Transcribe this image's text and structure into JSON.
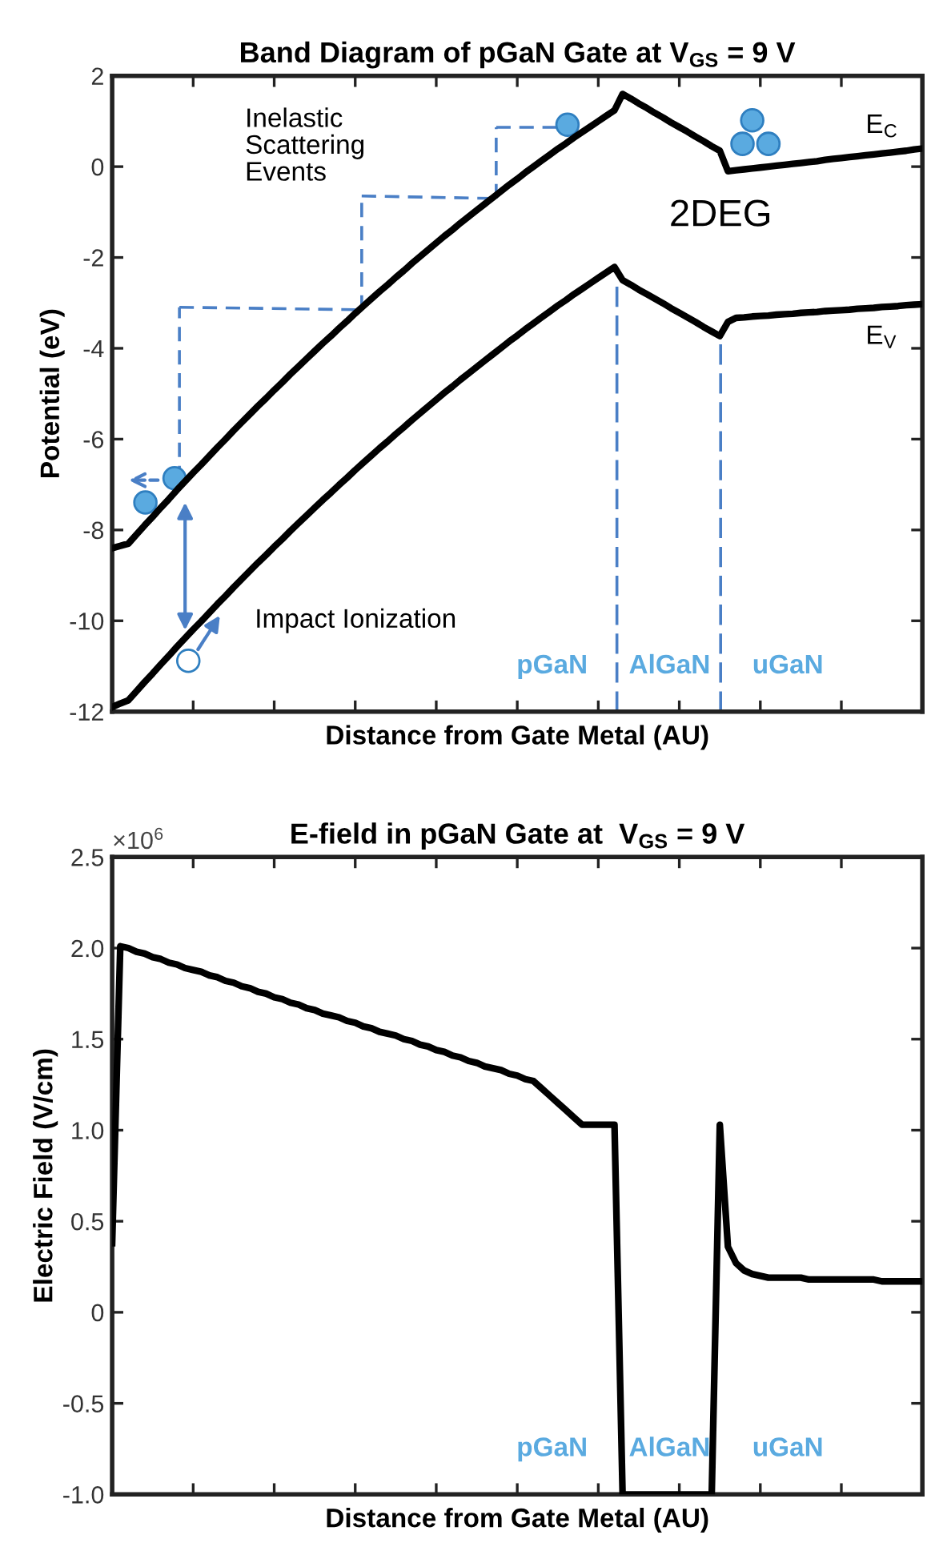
{
  "chart_data": [
    {
      "type": "line",
      "title": "Band Diagram of pGaN Gate at V$_{GS}$ = 9 V",
      "xlabel": "Distance from Gate Metal (AU)",
      "ylabel": "Potential (eV)",
      "categories": [
        null,
        null,
        null,
        null,
        null,
        null,
        null,
        null,
        null,
        null,
        null,
        null,
        null,
        null,
        null,
        null,
        null,
        null,
        null,
        null,
        null,
        null,
        null,
        null,
        null,
        null,
        null,
        null,
        null,
        null,
        null,
        null,
        null,
        null,
        null,
        null,
        null,
        null,
        null,
        null,
        null,
        null,
        null,
        null,
        null,
        null,
        null,
        null,
        null,
        null,
        null,
        null,
        null,
        null,
        null,
        null,
        null,
        null,
        null,
        null,
        null,
        null,
        null,
        null,
        null,
        null,
        null,
        null,
        null,
        null,
        null,
        null,
        null,
        null,
        null,
        null,
        null,
        null,
        null,
        null,
        null,
        null,
        null,
        null,
        null,
        null,
        null,
        null,
        null,
        null,
        null,
        null,
        null,
        null,
        null,
        null,
        null,
        null,
        null,
        null,
        null
      ],
      "ylim": [
        -12,
        2
      ],
      "yticks": [
        -12,
        -10,
        -8,
        -6,
        -4,
        -2,
        0,
        2
      ],
      "tick_labels": "y",
      "series": [
        {
          "color": "#000000",
          "values": [
            -8.4,
            -8.35,
            -8.3,
            -8.1,
            -7.9,
            -7.71,
            -7.51,
            -7.32,
            -7.12,
            -6.93,
            -6.74,
            -6.56,
            -6.37,
            -6.18,
            -6.0,
            -5.81,
            -5.63,
            -5.45,
            -5.27,
            -5.1,
            -4.92,
            -4.75,
            -4.57,
            -4.4,
            -4.23,
            -4.06,
            -3.89,
            -3.73,
            -3.56,
            -3.4,
            -3.23,
            -3.07,
            -2.91,
            -2.75,
            -2.6,
            -2.44,
            -2.29,
            -2.13,
            -1.98,
            -1.83,
            -1.68,
            -1.53,
            -1.39,
            -1.24,
            -1.1,
            -0.96,
            -0.82,
            -0.68,
            -0.54,
            -0.4,
            -0.27,
            -0.13,
            0.0,
            0.13,
            0.26,
            0.39,
            0.51,
            0.64,
            0.76,
            0.88,
            1.0,
            1.12,
            1.24,
            1.6,
            1.5,
            1.39,
            1.29,
            1.18,
            1.08,
            0.97,
            0.87,
            0.77,
            0.66,
            0.56,
            0.45,
            0.35,
            -0.1,
            -0.08,
            -0.06,
            -0.04,
            -0.02,
            0.0,
            0.02,
            0.04,
            0.06,
            0.08,
            0.1,
            0.12,
            0.15,
            0.17,
            0.19,
            0.21,
            0.23,
            0.25,
            0.27,
            0.29,
            0.31,
            0.33,
            0.35,
            0.38,
            0.4
          ]
        },
        {
          "color": "#000000",
          "values": [
            -11.9,
            -11.82,
            -11.75,
            -11.55,
            -11.35,
            -11.16,
            -10.96,
            -10.77,
            -10.57,
            -10.38,
            -10.19,
            -10.01,
            -9.82,
            -9.63,
            -9.45,
            -9.26,
            -9.08,
            -8.9,
            -8.72,
            -8.55,
            -8.37,
            -8.2,
            -8.02,
            -7.85,
            -7.68,
            -7.51,
            -7.34,
            -7.18,
            -7.01,
            -6.85,
            -6.68,
            -6.52,
            -6.36,
            -6.2,
            -6.05,
            -5.89,
            -5.74,
            -5.58,
            -5.43,
            -5.28,
            -5.13,
            -4.98,
            -4.84,
            -4.69,
            -4.55,
            -4.41,
            -4.27,
            -4.13,
            -3.99,
            -3.85,
            -3.72,
            -3.58,
            -3.45,
            -3.32,
            -3.19,
            -3.06,
            -2.94,
            -2.81,
            -2.69,
            -2.57,
            -2.45,
            -2.33,
            -2.21,
            -2.5,
            -2.6,
            -2.71,
            -2.81,
            -2.91,
            -3.01,
            -3.12,
            -3.22,
            -3.32,
            -3.42,
            -3.53,
            -3.63,
            -3.73,
            -3.42,
            -3.33,
            -3.32,
            -3.3,
            -3.29,
            -3.28,
            -3.26,
            -3.25,
            -3.24,
            -3.22,
            -3.21,
            -3.2,
            -3.18,
            -3.17,
            -3.16,
            -3.15,
            -3.13,
            -3.12,
            -3.11,
            -3.09,
            -3.08,
            -3.07,
            -3.05,
            -3.04,
            -3.03
          ]
        }
      ],
      "annotations": [
        "Inelastic\nScattering\nEvents",
        "2DEG",
        "E$_{C}$",
        "E$_{V}$",
        "Impact Ionization",
        "pGaN",
        "AlGaN",
        "uGaN"
      ]
    },
    {
      "type": "line",
      "title": "E-field in pGaN Gate at  V$_{GS}$ = 9 V",
      "xlabel": "Distance from Gate Metal (AU)",
      "ylabel": "Electric Field (V/cm)",
      "categories": [
        null,
        null,
        null,
        null,
        null,
        null,
        null,
        null,
        null,
        null,
        null,
        null,
        null,
        null,
        null,
        null,
        null,
        null,
        null,
        null,
        null,
        null,
        null,
        null,
        null,
        null,
        null,
        null,
        null,
        null,
        null,
        null,
        null,
        null,
        null,
        null,
        null,
        null,
        null,
        null,
        null,
        null,
        null,
        null,
        null,
        null,
        null,
        null,
        null,
        null,
        null,
        null,
        null,
        null,
        null,
        null,
        null,
        null,
        null,
        null,
        null,
        null,
        null,
        null,
        null,
        null,
        null,
        null,
        null,
        null,
        null,
        null,
        null,
        null,
        null,
        null,
        null,
        null,
        null,
        null,
        null,
        null,
        null,
        null,
        null,
        null,
        null,
        null,
        null,
        null,
        null,
        null,
        null,
        null,
        null,
        null,
        null,
        null,
        null,
        null,
        null
      ],
      "ylim": [
        -1.0,
        2.5
      ],
      "yticks": [
        {
          "value": -1.0,
          "label": "-1.0"
        },
        -0.5,
        0,
        0.5,
        {
          "value": 1.0,
          "label": "1.0"
        },
        1.5,
        {
          "value": 2.0,
          "label": "2.0"
        },
        2.5
      ],
      "tick_labels": "y",
      "series": [
        {
          "color": "#000000",
          "values": [
            0.38,
            2.01,
            2.0,
            1.98,
            1.97,
            1.95,
            1.94,
            1.92,
            1.91,
            1.89,
            1.88,
            1.87,
            1.85,
            1.84,
            1.82,
            1.81,
            1.79,
            1.78,
            1.76,
            1.75,
            1.73,
            1.72,
            1.7,
            1.69,
            1.67,
            1.66,
            1.64,
            1.63,
            1.62,
            1.6,
            1.59,
            1.57,
            1.56,
            1.54,
            1.53,
            1.52,
            1.5,
            1.49,
            1.47,
            1.46,
            1.44,
            1.43,
            1.41,
            1.4,
            1.38,
            1.37,
            1.35,
            1.34,
            1.33,
            1.31,
            1.3,
            1.28,
            1.27,
            1.23,
            1.19,
            1.15,
            1.11,
            1.07,
            1.03,
            1.03,
            1.03,
            1.03,
            1.03,
            -1.0,
            -1.0,
            -1.0,
            -1.0,
            -1.0,
            -1.0,
            -1.0,
            -1.0,
            -1.0,
            -1.0,
            -1.0,
            -1.0,
            1.03,
            0.36,
            0.27,
            0.23,
            0.21,
            0.2,
            0.19,
            0.19,
            0.19,
            0.19,
            0.19,
            0.18,
            0.18,
            0.18,
            0.18,
            0.18,
            0.18,
            0.18,
            0.18,
            0.18,
            0.17,
            0.17,
            0.17,
            0.17,
            0.17,
            0.17
          ]
        }
      ],
      "annotations": [
        "×10$^{6}$",
        "pGaN",
        "AlGaN",
        "uGaN"
      ]
    }
  ]
}
